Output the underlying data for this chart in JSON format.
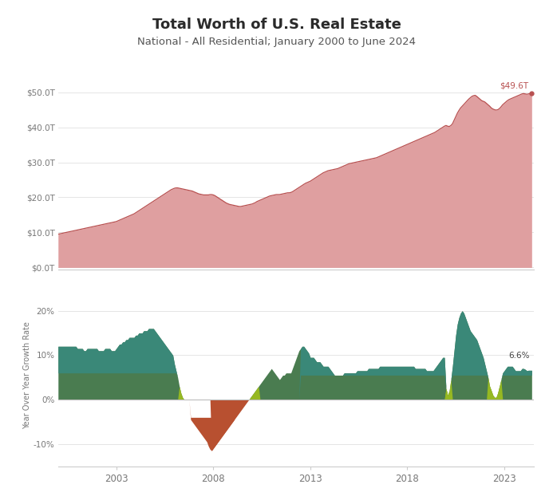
{
  "title": "Total Worth of U.S. Real Estate",
  "subtitle": "National - All Residential; January 2000 to June 2024",
  "title_fontsize": 13,
  "subtitle_fontsize": 9.5,
  "bg_color": "#ffffff",
  "top_chart": {
    "fill_color": "#df9fa0",
    "line_color": "#b85050",
    "yticks": [
      0,
      10,
      20,
      30,
      40,
      50
    ],
    "ytick_labels": [
      "$0.0T",
      "$10.0T",
      "$20.0T",
      "$30.0T",
      "$40.0T",
      "$50.0T"
    ],
    "ylim": [
      -0.5,
      54
    ],
    "annotation": "$49.6T",
    "annotation_color": "#b85050"
  },
  "bottom_chart": {
    "ylabel": "Year Over Year Growth Rate",
    "yticks": [
      -10,
      0,
      10,
      20
    ],
    "ytick_labels": [
      "-10%",
      "0%",
      "10%",
      "20%"
    ],
    "ylim": [
      -15,
      26
    ],
    "annotation": "6.6%",
    "annotation_color": "#444444",
    "zero_line_color": "#bbbbbb",
    "col_dark_green": "#4a7c50",
    "col_teal": "#3a8878",
    "col_ygreen": "#96b822",
    "col_orange": "#b85030",
    "col_yellow": "#d4a830"
  },
  "grid_color": "#e0e0e0",
  "axis_color": "#cccccc",
  "tick_color": "#777777",
  "start_year": 2000.0,
  "end_year": 2024.5,
  "total_value": [
    9.5,
    9.6,
    9.7,
    9.8,
    9.9,
    10.0,
    10.1,
    10.2,
    10.3,
    10.4,
    10.5,
    10.6,
    10.7,
    10.8,
    10.9,
    11.0,
    11.1,
    11.2,
    11.3,
    11.4,
    11.5,
    11.6,
    11.7,
    11.8,
    11.9,
    12.0,
    12.1,
    12.2,
    12.3,
    12.4,
    12.5,
    12.6,
    12.7,
    12.8,
    12.9,
    13.0,
    13.1,
    13.3,
    13.5,
    13.7,
    13.9,
    14.1,
    14.3,
    14.5,
    14.7,
    14.9,
    15.1,
    15.3,
    15.6,
    15.9,
    16.2,
    16.5,
    16.8,
    17.1,
    17.4,
    17.7,
    18.0,
    18.3,
    18.6,
    18.9,
    19.2,
    19.5,
    19.8,
    20.1,
    20.4,
    20.7,
    21.0,
    21.3,
    21.6,
    21.9,
    22.2,
    22.4,
    22.6,
    22.7,
    22.7,
    22.6,
    22.5,
    22.4,
    22.3,
    22.2,
    22.1,
    22.0,
    21.9,
    21.8,
    21.6,
    21.4,
    21.2,
    21.0,
    20.9,
    20.8,
    20.7,
    20.7,
    20.7,
    20.7,
    20.8,
    20.8,
    20.7,
    20.5,
    20.2,
    19.9,
    19.6,
    19.3,
    19.0,
    18.7,
    18.4,
    18.2,
    18.0,
    17.9,
    17.8,
    17.7,
    17.6,
    17.5,
    17.4,
    17.4,
    17.5,
    17.6,
    17.7,
    17.8,
    17.9,
    18.0,
    18.1,
    18.3,
    18.5,
    18.8,
    19.0,
    19.2,
    19.4,
    19.6,
    19.8,
    20.0,
    20.2,
    20.4,
    20.5,
    20.6,
    20.7,
    20.8,
    20.8,
    20.8,
    20.9,
    21.0,
    21.1,
    21.2,
    21.3,
    21.3,
    21.4,
    21.6,
    21.9,
    22.2,
    22.5,
    22.8,
    23.1,
    23.4,
    23.7,
    24.0,
    24.2,
    24.4,
    24.6,
    24.9,
    25.2,
    25.5,
    25.8,
    26.1,
    26.4,
    26.7,
    27.0,
    27.2,
    27.4,
    27.6,
    27.7,
    27.8,
    27.9,
    28.0,
    28.1,
    28.2,
    28.4,
    28.6,
    28.8,
    29.0,
    29.2,
    29.4,
    29.6,
    29.7,
    29.8,
    29.9,
    30.0,
    30.1,
    30.2,
    30.3,
    30.4,
    30.5,
    30.6,
    30.7,
    30.8,
    30.9,
    31.0,
    31.1,
    31.2,
    31.3,
    31.5,
    31.7,
    31.9,
    32.1,
    32.3,
    32.5,
    32.7,
    32.9,
    33.1,
    33.3,
    33.5,
    33.7,
    33.9,
    34.1,
    34.3,
    34.5,
    34.7,
    34.9,
    35.1,
    35.3,
    35.5,
    35.7,
    35.9,
    36.1,
    36.3,
    36.5,
    36.7,
    36.9,
    37.1,
    37.3,
    37.5,
    37.7,
    37.9,
    38.1,
    38.3,
    38.5,
    38.8,
    39.1,
    39.4,
    39.7,
    40.0,
    40.3,
    40.5,
    40.3,
    40.2,
    40.5,
    41.0,
    42.0,
    43.0,
    44.0,
    44.8,
    45.5,
    46.0,
    46.5,
    47.0,
    47.5,
    48.0,
    48.4,
    48.8,
    49.0,
    49.1,
    48.8,
    48.4,
    48.0,
    47.6,
    47.4,
    47.2,
    46.8,
    46.4,
    46.0,
    45.5,
    45.2,
    45.0,
    44.9,
    45.0,
    45.3,
    45.8,
    46.4,
    46.8,
    47.2,
    47.6,
    47.9,
    48.1,
    48.3,
    48.5,
    48.7,
    48.9,
    49.1,
    49.3,
    49.5,
    49.6,
    49.5,
    49.4,
    49.5,
    49.6,
    49.6
  ],
  "yoy_growth": [
    12.0,
    12.0,
    12.0,
    12.0,
    12.0,
    12.0,
    12.0,
    12.0,
    12.0,
    12.0,
    12.0,
    12.0,
    11.5,
    11.5,
    11.5,
    11.5,
    11.0,
    11.0,
    11.5,
    11.5,
    11.5,
    11.5,
    11.5,
    11.5,
    11.5,
    11.0,
    11.0,
    11.0,
    11.0,
    11.5,
    11.5,
    11.5,
    11.5,
    11.0,
    11.0,
    11.0,
    11.5,
    12.0,
    12.5,
    12.5,
    13.0,
    13.0,
    13.5,
    13.5,
    14.0,
    14.0,
    14.0,
    14.0,
    14.5,
    14.5,
    15.0,
    15.0,
    15.0,
    15.5,
    15.5,
    15.5,
    16.0,
    16.0,
    16.0,
    16.0,
    15.5,
    15.0,
    14.5,
    14.0,
    13.5,
    13.0,
    12.5,
    12.0,
    11.5,
    11.0,
    10.5,
    10.0,
    8.0,
    6.5,
    5.0,
    3.0,
    1.5,
    0.5,
    -0.5,
    -1.5,
    -2.5,
    -3.5,
    -4.5,
    -5.0,
    -5.5,
    -6.0,
    -6.5,
    -7.0,
    -7.5,
    -8.0,
    -8.5,
    -9.0,
    -9.5,
    -10.5,
    -11.2,
    -11.5,
    -11.0,
    -10.5,
    -10.0,
    -9.5,
    -9.0,
    -8.5,
    -8.0,
    -7.5,
    -7.0,
    -6.5,
    -6.0,
    -5.5,
    -5.0,
    -4.5,
    -4.0,
    -3.5,
    -3.0,
    -2.5,
    -2.0,
    -1.5,
    -1.0,
    -0.5,
    0.0,
    0.5,
    1.0,
    1.5,
    2.0,
    2.5,
    3.0,
    3.5,
    4.0,
    4.5,
    5.0,
    5.5,
    6.0,
    6.5,
    7.0,
    6.5,
    6.0,
    5.5,
    5.0,
    4.5,
    5.0,
    5.5,
    5.5,
    6.0,
    6.0,
    6.0,
    6.0,
    7.0,
    8.0,
    9.0,
    10.0,
    11.0,
    11.5,
    12.0,
    12.0,
    11.5,
    11.0,
    10.5,
    9.5,
    9.5,
    9.5,
    9.0,
    8.5,
    8.5,
    8.5,
    8.0,
    7.5,
    7.5,
    7.5,
    7.5,
    7.0,
    6.5,
    6.0,
    5.5,
    5.5,
    5.5,
    5.5,
    5.5,
    5.5,
    6.0,
    6.0,
    6.0,
    6.0,
    6.0,
    6.0,
    6.0,
    6.0,
    6.5,
    6.5,
    6.5,
    6.5,
    6.5,
    6.5,
    6.5,
    7.0,
    7.0,
    7.0,
    7.0,
    7.0,
    7.0,
    7.0,
    7.5,
    7.5,
    7.5,
    7.5,
    7.5,
    7.5,
    7.5,
    7.5,
    7.5,
    7.5,
    7.5,
    7.5,
    7.5,
    7.5,
    7.5,
    7.5,
    7.5,
    7.5,
    7.5,
    7.5,
    7.5,
    7.5,
    7.0,
    7.0,
    7.0,
    7.0,
    7.0,
    7.0,
    7.0,
    6.5,
    6.5,
    6.5,
    6.5,
    6.5,
    7.0,
    7.5,
    8.0,
    8.5,
    9.0,
    9.5,
    9.5,
    2.5,
    1.0,
    2.0,
    4.5,
    7.5,
    11.0,
    14.5,
    17.0,
    18.5,
    19.5,
    20.0,
    19.5,
    18.5,
    17.5,
    16.5,
    15.5,
    15.0,
    14.5,
    14.0,
    13.5,
    12.5,
    11.5,
    10.5,
    9.5,
    8.0,
    6.5,
    5.0,
    3.0,
    2.0,
    1.0,
    0.5,
    0.5,
    1.5,
    3.0,
    4.5,
    6.0,
    6.5,
    7.0,
    7.5,
    7.5,
    7.5,
    7.5,
    7.0,
    6.5,
    6.5,
    6.5,
    6.5,
    7.0,
    7.0,
    6.8,
    6.5,
    6.6,
    6.6,
    6.6
  ]
}
